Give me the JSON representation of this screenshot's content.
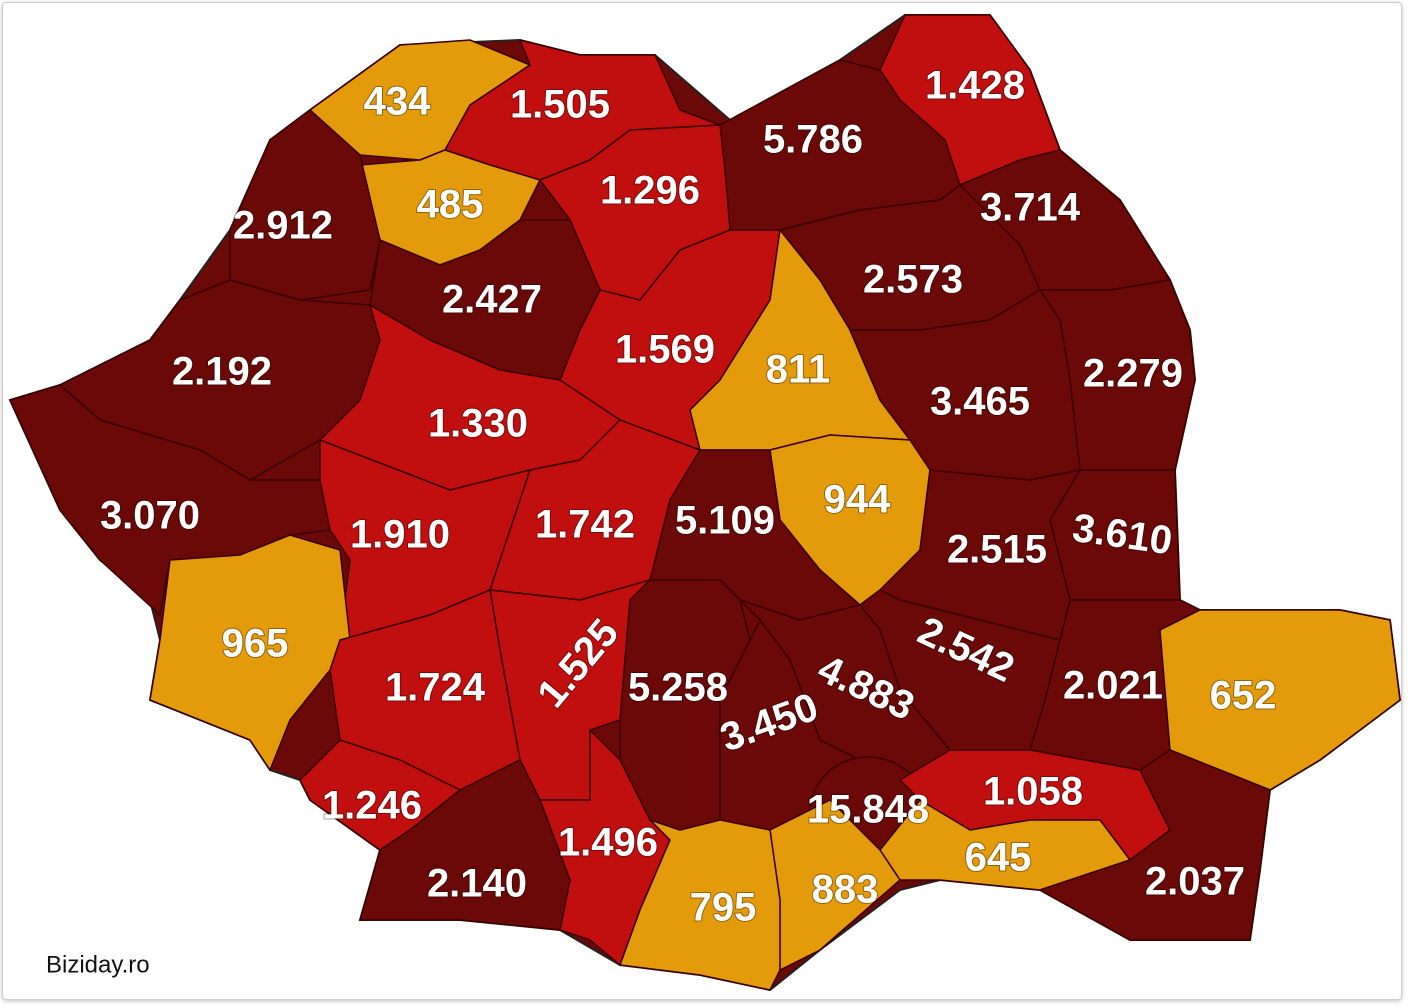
{
  "source": "Biziday.ro",
  "regions": [
    {
      "label": "434",
      "color": "#e39a0b"
    },
    {
      "label": "1.505",
      "color": "#c10e0e"
    },
    {
      "label": "1.428",
      "color": "#c10e0e"
    },
    {
      "label": "5.786",
      "color": "#6b0808"
    },
    {
      "label": "485",
      "color": "#e39a0b"
    },
    {
      "label": "1.296",
      "color": "#c10e0e"
    },
    {
      "label": "2.912",
      "color": "#6b0808"
    },
    {
      "label": "3.714",
      "color": "#6b0808"
    },
    {
      "label": "2.427",
      "color": "#6b0808"
    },
    {
      "label": "2.573",
      "color": "#6b0808"
    },
    {
      "label": "1.569",
      "color": "#c10e0e"
    },
    {
      "label": "811",
      "color": "#e39a0b"
    },
    {
      "label": "2.192",
      "color": "#6b0808"
    },
    {
      "label": "2.279",
      "color": "#6b0808"
    },
    {
      "label": "3.465",
      "color": "#6b0808"
    },
    {
      "label": "1.330",
      "color": "#c10e0e"
    },
    {
      "label": "944",
      "color": "#e39a0b"
    },
    {
      "label": "3.070",
      "color": "#6b0808"
    },
    {
      "label": "1.910",
      "color": "#c10e0e"
    },
    {
      "label": "1.742",
      "color": "#c10e0e"
    },
    {
      "label": "5.109",
      "color": "#6b0808"
    },
    {
      "label": "3.610",
      "color": "#6b0808"
    },
    {
      "label": "2.515",
      "color": "#6b0808"
    },
    {
      "label": "965",
      "color": "#e39a0b"
    },
    {
      "label": "2.542",
      "color": "#6b0808"
    },
    {
      "label": "1.525",
      "color": "#c10e0e"
    },
    {
      "label": "5.258",
      "color": "#6b0808"
    },
    {
      "label": "4.883",
      "color": "#6b0808"
    },
    {
      "label": "1.724",
      "color": "#c10e0e"
    },
    {
      "label": "3.450",
      "color": "#6b0808"
    },
    {
      "label": "2.021",
      "color": "#6b0808"
    },
    {
      "label": "652",
      "color": "#e39a0b"
    },
    {
      "label": "1.246",
      "color": "#c10e0e"
    },
    {
      "label": "15.848",
      "color": "#6b0808"
    },
    {
      "label": "1.058",
      "color": "#c10e0e"
    },
    {
      "label": "1.496",
      "color": "#c10e0e"
    },
    {
      "label": "2.140",
      "color": "#6b0808"
    },
    {
      "label": "645",
      "color": "#e39a0b"
    },
    {
      "label": "883",
      "color": "#e39a0b"
    },
    {
      "label": "795",
      "color": "#e39a0b"
    },
    {
      "label": "2.037",
      "color": "#6b0808"
    }
  ]
}
